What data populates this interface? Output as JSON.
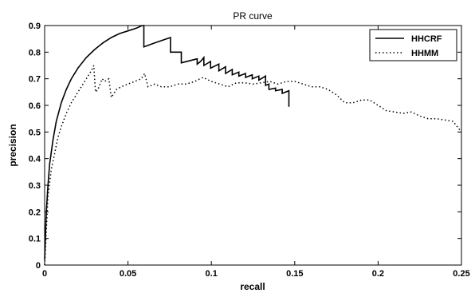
{
  "chart_data": {
    "type": "line",
    "title": "PR curve",
    "xlabel": "recall",
    "ylabel": "precision",
    "xlim": [
      0,
      0.25
    ],
    "ylim": [
      0,
      0.9
    ],
    "xticks": [
      "0",
      "0.05",
      "0.1",
      "0.15",
      "0.2",
      "0.25"
    ],
    "yticks": [
      "0",
      "0.1",
      "0.2",
      "0.3",
      "0.4",
      "0.5",
      "0.6",
      "0.7",
      "0.8",
      "0.9"
    ],
    "grid": false,
    "legend_position": "top-right",
    "series": [
      {
        "name": "HHCRF",
        "style": "solid",
        "color": "#000000",
        "x": [
          0,
          0.001,
          0.002,
          0.003,
          0.005,
          0.007,
          0.01,
          0.013,
          0.016,
          0.02,
          0.025,
          0.03,
          0.035,
          0.04,
          0.045,
          0.05,
          0.055,
          0.0585,
          0.0595,
          0.0595,
          0.066,
          0.0755,
          0.0755,
          0.077,
          0.077,
          0.082,
          0.082,
          0.0915,
          0.0915,
          0.0935,
          0.0935,
          0.0955,
          0.0955,
          0.0995,
          0.0995,
          0.1045,
          0.1045,
          0.1085,
          0.1085,
          0.1125,
          0.1125,
          0.1165,
          0.1165,
          0.1205,
          0.1205,
          0.1245,
          0.1245,
          0.1285,
          0.1285,
          0.1325,
          0.1325,
          0.1345,
          0.1345,
          0.1385,
          0.1385,
          0.1425,
          0.1425,
          0.1465,
          0.1465
        ],
        "y": [
          0.02,
          0.2,
          0.3,
          0.38,
          0.47,
          0.54,
          0.61,
          0.66,
          0.7,
          0.74,
          0.78,
          0.81,
          0.835,
          0.855,
          0.87,
          0.88,
          0.89,
          0.9,
          0.9,
          0.82,
          0.835,
          0.855,
          0.8,
          0.8,
          0.8,
          0.8,
          0.76,
          0.775,
          0.755,
          0.765,
          0.765,
          0.78,
          0.75,
          0.765,
          0.74,
          0.755,
          0.73,
          0.745,
          0.72,
          0.735,
          0.715,
          0.725,
          0.71,
          0.72,
          0.705,
          0.715,
          0.7,
          0.71,
          0.695,
          0.71,
          0.675,
          0.68,
          0.66,
          0.665,
          0.655,
          0.66,
          0.645,
          0.655,
          0.595
        ]
      },
      {
        "name": "HHMM",
        "style": "dotted",
        "color": "#000000",
        "x": [
          0,
          0.002,
          0.004,
          0.006,
          0.008,
          0.01,
          0.013,
          0.016,
          0.019,
          0.022,
          0.025,
          0.028,
          0.0295,
          0.0305,
          0.032,
          0.0345,
          0.036,
          0.0385,
          0.04,
          0.043,
          0.046,
          0.05,
          0.054,
          0.058,
          0.06,
          0.062,
          0.066,
          0.07,
          0.075,
          0.08,
          0.085,
          0.09,
          0.095,
          0.1,
          0.105,
          0.11,
          0.115,
          0.12,
          0.125,
          0.13,
          0.135,
          0.14,
          0.145,
          0.15,
          0.155,
          0.16,
          0.165,
          0.17,
          0.175,
          0.18,
          0.185,
          0.19,
          0.195,
          0.2,
          0.205,
          0.21,
          0.215,
          0.22,
          0.225,
          0.23,
          0.235,
          0.24,
          0.245,
          0.25
        ],
        "y": [
          0,
          0.26,
          0.36,
          0.42,
          0.48,
          0.52,
          0.57,
          0.61,
          0.64,
          0.67,
          0.7,
          0.73,
          0.75,
          0.65,
          0.66,
          0.7,
          0.69,
          0.7,
          0.63,
          0.66,
          0.67,
          0.68,
          0.69,
          0.7,
          0.72,
          0.67,
          0.68,
          0.67,
          0.67,
          0.68,
          0.68,
          0.69,
          0.705,
          0.69,
          0.68,
          0.67,
          0.685,
          0.685,
          0.68,
          0.685,
          0.69,
          0.68,
          0.69,
          0.69,
          0.68,
          0.67,
          0.67,
          0.66,
          0.64,
          0.61,
          0.61,
          0.62,
          0.62,
          0.6,
          0.58,
          0.575,
          0.57,
          0.575,
          0.56,
          0.55,
          0.55,
          0.545,
          0.54,
          0.5
        ]
      }
    ]
  }
}
